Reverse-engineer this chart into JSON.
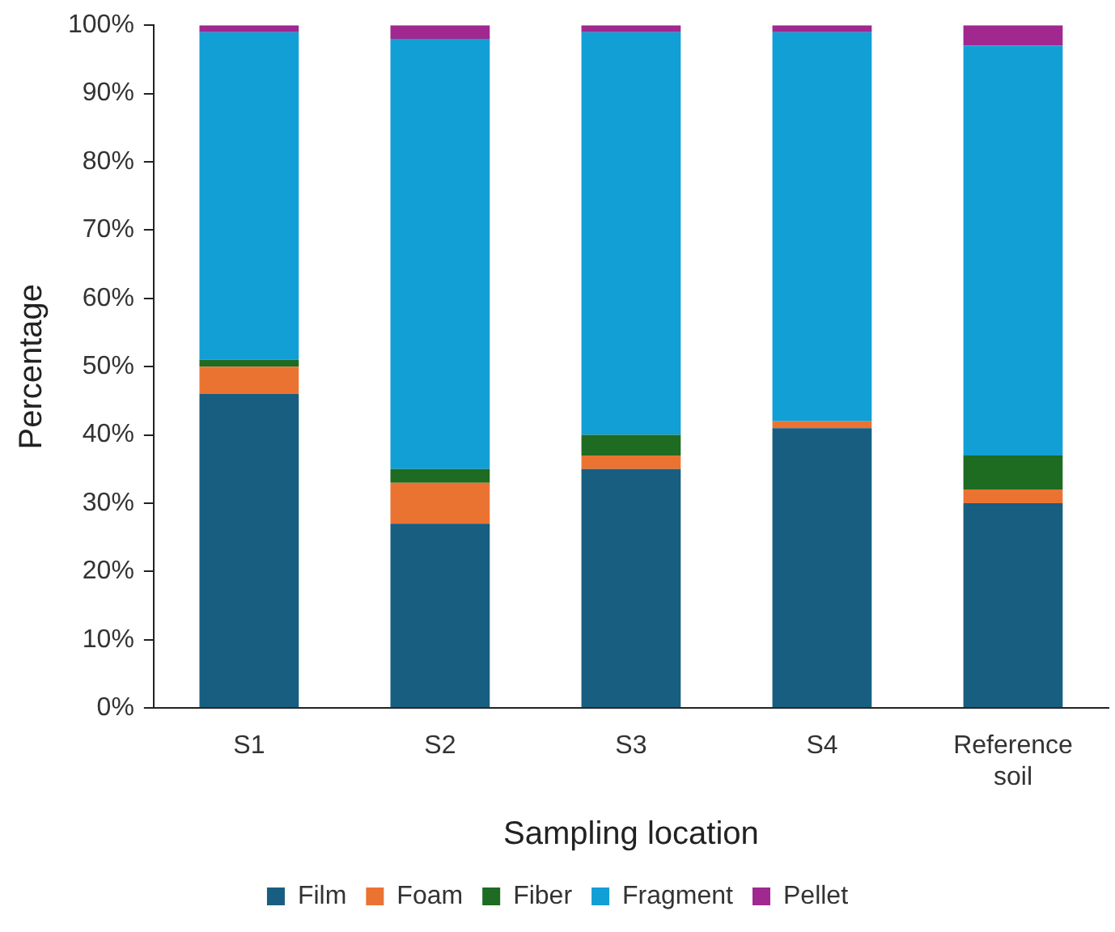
{
  "chart_data": {
    "type": "bar",
    "stacked": true,
    "xlabel": "Sampling location",
    "ylabel": "Percentage",
    "categories": [
      "S1",
      "S2",
      "S3",
      "S4",
      "Reference soil"
    ],
    "series": [
      {
        "name": "Film",
        "color": "#175e80",
        "values": [
          46,
          27,
          35,
          41,
          30
        ]
      },
      {
        "name": "Foam",
        "color": "#eb7332",
        "values": [
          4,
          6,
          2,
          1,
          2
        ]
      },
      {
        "name": "Fiber",
        "color": "#1e6b22",
        "values": [
          1,
          2,
          3,
          0,
          5
        ]
      },
      {
        "name": "Fragment",
        "color": "#129fd6",
        "values": [
          48,
          63,
          59,
          57,
          60
        ]
      },
      {
        "name": "Pellet",
        "color": "#a0288f",
        "values": [
          1,
          2,
          1,
          1,
          3
        ]
      }
    ],
    "ylim": [
      0,
      100
    ],
    "yticks": [
      {
        "value": 0,
        "label": "0%"
      },
      {
        "value": 10,
        "label": "10%"
      },
      {
        "value": 20,
        "label": "20%"
      },
      {
        "value": 30,
        "label": "30%"
      },
      {
        "value": 40,
        "label": "40%"
      },
      {
        "value": 50,
        "label": "50%"
      },
      {
        "value": 60,
        "label": "60%"
      },
      {
        "value": 70,
        "label": "70%"
      },
      {
        "value": 80,
        "label": "80%"
      },
      {
        "value": 90,
        "label": "90%"
      },
      {
        "value": 100,
        "label": "100%"
      }
    ],
    "grid": false,
    "legend": "bottom"
  }
}
